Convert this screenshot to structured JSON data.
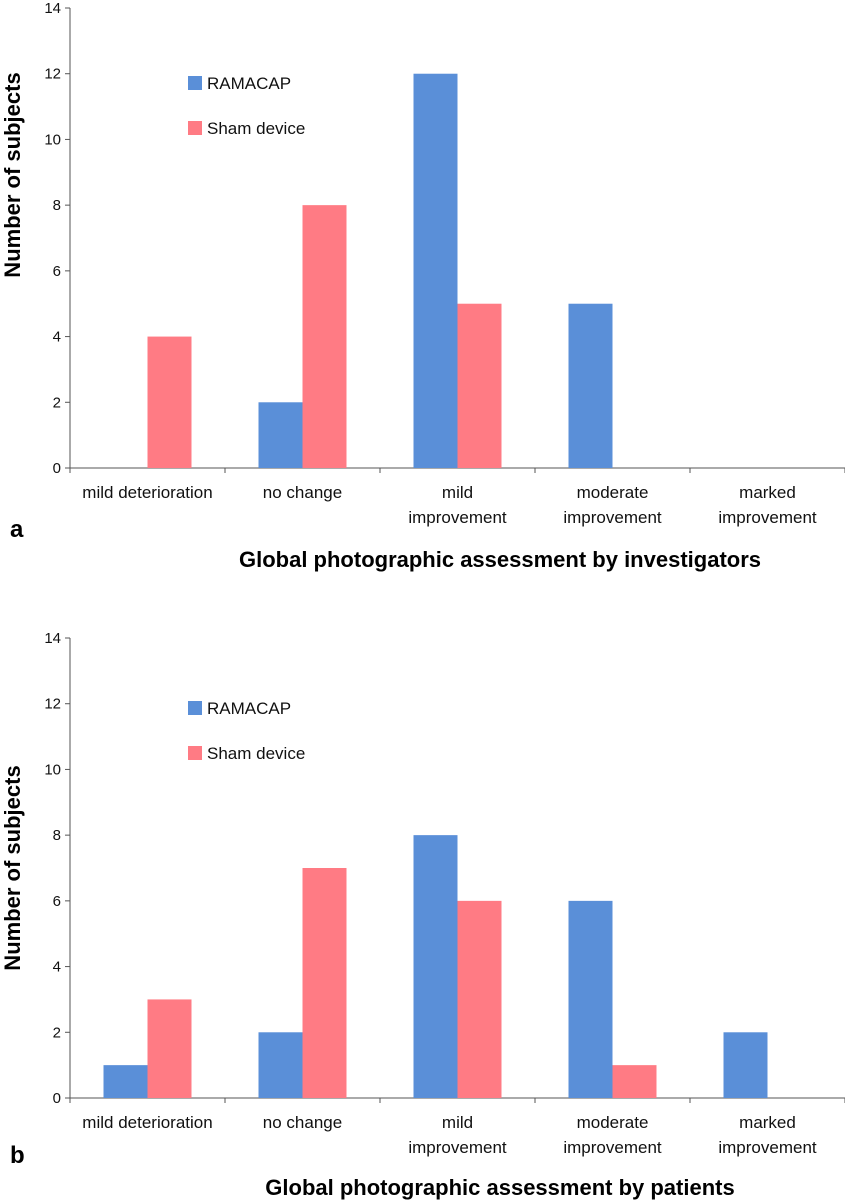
{
  "chart_data": [
    {
      "type": "bar",
      "panel_label": "a",
      "categories": [
        "mild deterioration",
        "no change",
        "mild improvement",
        "moderate improvement",
        "marked improvement"
      ],
      "series": [
        {
          "name": "RAMACAP",
          "values": [
            0,
            2,
            12,
            5,
            0
          ],
          "color": "#5a8fd8"
        },
        {
          "name": "Sham device",
          "values": [
            4,
            8,
            5,
            0,
            0
          ],
          "color": "#ff7b84"
        }
      ],
      "xlabel": "Global photographic assessment by investigators",
      "ylabel": "Number of subjects",
      "ylim": [
        0,
        14
      ],
      "yticks": [
        0,
        2,
        4,
        6,
        8,
        10,
        12,
        14
      ],
      "grid": false,
      "legend_position": "top-left"
    },
    {
      "type": "bar",
      "panel_label": "b",
      "categories": [
        "mild deterioration",
        "no change",
        "mild improvement",
        "moderate improvement",
        "marked improvement"
      ],
      "series": [
        {
          "name": "RAMACAP",
          "values": [
            1,
            2,
            8,
            6,
            2
          ],
          "color": "#5a8fd8"
        },
        {
          "name": "Sham device",
          "values": [
            3,
            7,
            6,
            1,
            0
          ],
          "color": "#ff7b84"
        }
      ],
      "xlabel": "Global photographic assessment by patients",
      "ylabel": "Number of subjects",
      "ylim": [
        0,
        14
      ],
      "yticks": [
        0,
        2,
        4,
        6,
        8,
        10,
        12,
        14
      ],
      "grid": false,
      "legend_position": "top-left"
    }
  ]
}
